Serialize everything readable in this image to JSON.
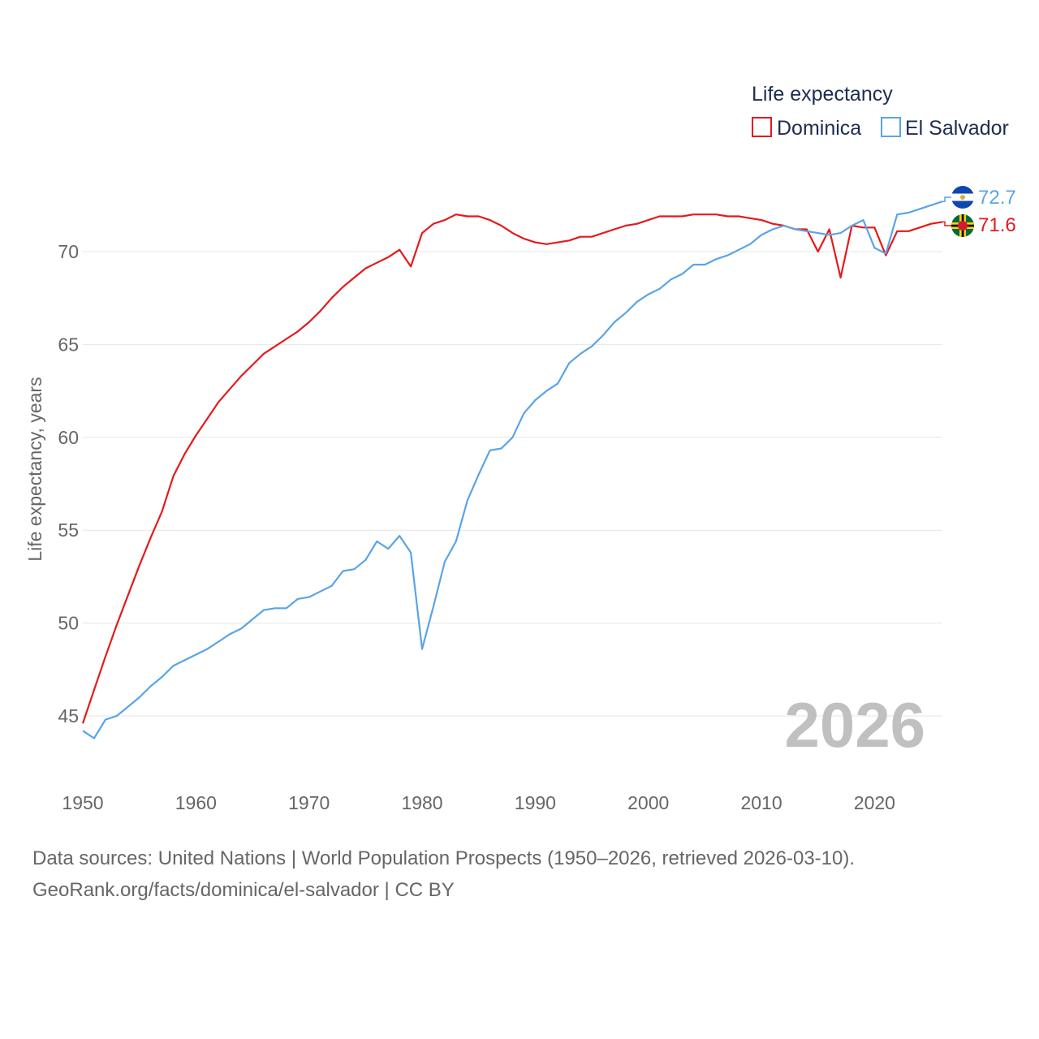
{
  "chart_data": {
    "type": "line",
    "legend_title": "Life expectancy",
    "ylabel": "Life expectancy, years",
    "xlabel": "",
    "year_label": "2026",
    "xlim": [
      1950,
      2026
    ],
    "ylim": [
      43.2,
      73.2
    ],
    "x_ticks": [
      1950,
      1960,
      1970,
      1980,
      1990,
      2000,
      2010,
      2020
    ],
    "y_ticks": [
      45,
      50,
      55,
      60,
      65,
      70
    ],
    "legend_position": "top-right",
    "series": [
      {
        "name": "Dominica",
        "color": "#e41a1c",
        "end_label": "71.6",
        "points": [
          [
            1950,
            44.6
          ],
          [
            1951,
            46.4
          ],
          [
            1952,
            48.2
          ],
          [
            1953,
            49.9
          ],
          [
            1954,
            51.5
          ],
          [
            1955,
            53.1
          ],
          [
            1956,
            54.6
          ],
          [
            1957,
            56.0
          ],
          [
            1958,
            57.9
          ],
          [
            1959,
            59.1
          ],
          [
            1960,
            60.1
          ],
          [
            1961,
            61.0
          ],
          [
            1962,
            61.9
          ],
          [
            1963,
            62.6
          ],
          [
            1964,
            63.3
          ],
          [
            1965,
            63.9
          ],
          [
            1966,
            64.5
          ],
          [
            1967,
            64.9
          ],
          [
            1968,
            65.3
          ],
          [
            1969,
            65.7
          ],
          [
            1970,
            66.2
          ],
          [
            1971,
            66.8
          ],
          [
            1972,
            67.5
          ],
          [
            1973,
            68.1
          ],
          [
            1974,
            68.6
          ],
          [
            1975,
            69.1
          ],
          [
            1976,
            69.4
          ],
          [
            1977,
            69.7
          ],
          [
            1978,
            70.1
          ],
          [
            1979,
            69.2
          ],
          [
            1980,
            71.0
          ],
          [
            1981,
            71.5
          ],
          [
            1982,
            71.7
          ],
          [
            1983,
            72.0
          ],
          [
            1984,
            71.9
          ],
          [
            1985,
            71.9
          ],
          [
            1986,
            71.7
          ],
          [
            1987,
            71.4
          ],
          [
            1988,
            71.0
          ],
          [
            1989,
            70.7
          ],
          [
            1990,
            70.5
          ],
          [
            1991,
            70.4
          ],
          [
            1992,
            70.5
          ],
          [
            1993,
            70.6
          ],
          [
            1994,
            70.8
          ],
          [
            1995,
            70.8
          ],
          [
            1996,
            71.0
          ],
          [
            1997,
            71.2
          ],
          [
            1998,
            71.4
          ],
          [
            1999,
            71.5
          ],
          [
            2000,
            71.7
          ],
          [
            2001,
            71.9
          ],
          [
            2002,
            71.9
          ],
          [
            2003,
            71.9
          ],
          [
            2004,
            72.0
          ],
          [
            2005,
            72.0
          ],
          [
            2006,
            72.0
          ],
          [
            2007,
            71.9
          ],
          [
            2008,
            71.9
          ],
          [
            2009,
            71.8
          ],
          [
            2010,
            71.7
          ],
          [
            2011,
            71.5
          ],
          [
            2012,
            71.4
          ],
          [
            2013,
            71.2
          ],
          [
            2014,
            71.2
          ],
          [
            2015,
            70.0
          ],
          [
            2016,
            71.2
          ],
          [
            2017,
            68.6
          ],
          [
            2018,
            71.4
          ],
          [
            2019,
            71.3
          ],
          [
            2020,
            71.3
          ],
          [
            2021,
            69.8
          ],
          [
            2022,
            71.1
          ],
          [
            2023,
            71.1
          ],
          [
            2024,
            71.3
          ],
          [
            2025,
            71.5
          ],
          [
            2026,
            71.6
          ]
        ]
      },
      {
        "name": "El Salvador",
        "color": "#5aa4e6",
        "end_label": "72.7",
        "points": [
          [
            1950,
            44.2
          ],
          [
            1951,
            43.8
          ],
          [
            1952,
            44.8
          ],
          [
            1953,
            45.0
          ],
          [
            1954,
            45.5
          ],
          [
            1955,
            46.0
          ],
          [
            1956,
            46.6
          ],
          [
            1957,
            47.1
          ],
          [
            1958,
            47.7
          ],
          [
            1959,
            48.0
          ],
          [
            1960,
            48.3
          ],
          [
            1961,
            48.6
          ],
          [
            1962,
            49.0
          ],
          [
            1963,
            49.4
          ],
          [
            1964,
            49.7
          ],
          [
            1965,
            50.2
          ],
          [
            1966,
            50.7
          ],
          [
            1967,
            50.8
          ],
          [
            1968,
            50.8
          ],
          [
            1969,
            51.3
          ],
          [
            1970,
            51.4
          ],
          [
            1971,
            51.7
          ],
          [
            1972,
            52.0
          ],
          [
            1973,
            52.8
          ],
          [
            1974,
            52.9
          ],
          [
            1975,
            53.4
          ],
          [
            1976,
            54.4
          ],
          [
            1977,
            54.0
          ],
          [
            1978,
            54.7
          ],
          [
            1979,
            53.8
          ],
          [
            1980,
            48.6
          ],
          [
            1981,
            50.9
          ],
          [
            1982,
            53.3
          ],
          [
            1983,
            54.4
          ],
          [
            1984,
            56.6
          ],
          [
            1985,
            58.0
          ],
          [
            1986,
            59.3
          ],
          [
            1987,
            59.4
          ],
          [
            1988,
            60.0
          ],
          [
            1989,
            61.3
          ],
          [
            1990,
            62.0
          ],
          [
            1991,
            62.5
          ],
          [
            1992,
            62.9
          ],
          [
            1993,
            64.0
          ],
          [
            1994,
            64.5
          ],
          [
            1995,
            64.9
          ],
          [
            1996,
            65.5
          ],
          [
            1997,
            66.2
          ],
          [
            1998,
            66.7
          ],
          [
            1999,
            67.3
          ],
          [
            2000,
            67.7
          ],
          [
            2001,
            68.0
          ],
          [
            2002,
            68.5
          ],
          [
            2003,
            68.8
          ],
          [
            2004,
            69.3
          ],
          [
            2005,
            69.3
          ],
          [
            2006,
            69.6
          ],
          [
            2007,
            69.8
          ],
          [
            2008,
            70.1
          ],
          [
            2009,
            70.4
          ],
          [
            2010,
            70.9
          ],
          [
            2011,
            71.2
          ],
          [
            2012,
            71.4
          ],
          [
            2013,
            71.2
          ],
          [
            2014,
            71.1
          ],
          [
            2015,
            71.0
          ],
          [
            2016,
            70.9
          ],
          [
            2017,
            71.0
          ],
          [
            2018,
            71.4
          ],
          [
            2019,
            71.7
          ],
          [
            2020,
            70.2
          ],
          [
            2021,
            69.9
          ],
          [
            2022,
            72.0
          ],
          [
            2023,
            72.1
          ],
          [
            2024,
            72.3
          ],
          [
            2025,
            72.5
          ],
          [
            2026,
            72.7
          ]
        ]
      }
    ]
  },
  "footer": {
    "sources": "Data sources: United Nations | World Population Prospects (1950–2026, retrieved 2026-03-10).",
    "link": "GeoRank.org/facts/dominica/el-salvador | CC BY"
  }
}
